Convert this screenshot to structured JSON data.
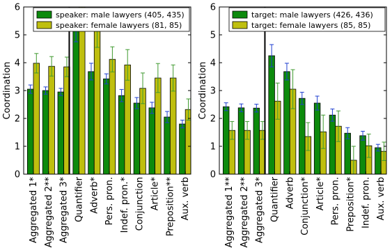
{
  "colors": {
    "male": "#0d8a0d",
    "female": "#bfbf0f",
    "male_err": "#1f3fd0",
    "female_err": "#3f9a2f"
  },
  "chart_data": [
    {
      "type": "bar",
      "ylabel": "Coordination",
      "ylim": [
        0,
        6
      ],
      "yticks": [
        "0",
        "1",
        "2",
        "3",
        "4",
        "5",
        "6"
      ],
      "separator_after": 3,
      "legend_position": "top-right",
      "categories": [
        "Aggregated 1*",
        "Aggregated 2**",
        "Aggregated 3*",
        "Quantifier",
        "Adverb*",
        "Pers. pron.",
        "Indef. pron.*",
        "Conjunction",
        "Article*",
        "Preposition**",
        "Aux. verb"
      ],
      "series": [
        {
          "name": "speaker: male lawyers (405, 435)",
          "values": [
            3.05,
            3.0,
            2.95,
            5.15,
            3.68,
            3.42,
            2.82,
            2.55,
            2.38,
            2.05,
            1.8
          ],
          "err": [
            0.15,
            0.13,
            0.13,
            0.4,
            0.3,
            0.18,
            0.22,
            0.2,
            0.2,
            0.2,
            0.14
          ]
        },
        {
          "name": "speaker: female lawyers (81, 85)",
          "values": [
            3.98,
            3.87,
            3.85,
            6.0,
            5.15,
            4.12,
            3.92,
            3.08,
            3.45,
            3.45,
            2.32
          ],
          "err": [
            0.35,
            0.35,
            0.35,
            0.6,
            0.6,
            0.45,
            0.55,
            0.55,
            0.52,
            0.47,
            0.38
          ]
        }
      ]
    },
    {
      "type": "bar",
      "ylabel": "Coordination",
      "ylim": [
        0,
        6
      ],
      "yticks": [
        "0",
        "1",
        "2",
        "3",
        "4",
        "5",
        "6"
      ],
      "separator_after": 3,
      "legend_position": "top-right",
      "categories": [
        "Aggregated 1**",
        "Aggregated 2**",
        "Aggregated 3*",
        "Quantifier",
        "Adverb",
        "Conjunction*",
        "Article*",
        "Pers. pron.",
        "Preposition*",
        "Indef. pron.",
        "Aux. verb"
      ],
      "series": [
        {
          "name": "target: male lawyers (426, 436)",
          "values": [
            2.42,
            2.38,
            2.37,
            4.25,
            3.68,
            2.72,
            2.55,
            2.12,
            1.47,
            1.38,
            0.95
          ],
          "err": [
            0.14,
            0.14,
            0.14,
            0.4,
            0.3,
            0.22,
            0.25,
            0.22,
            0.2,
            0.16,
            0.12
          ]
        },
        {
          "name": "target: female lawyers (85, 85)",
          "values": [
            1.57,
            1.57,
            1.57,
            2.62,
            3.05,
            1.35,
            1.52,
            1.72,
            0.5,
            1.02,
            0.82
          ],
          "err": [
            0.32,
            0.32,
            0.32,
            0.65,
            0.7,
            0.5,
            0.6,
            0.55,
            0.5,
            0.42,
            0.33
          ]
        }
      ]
    }
  ]
}
